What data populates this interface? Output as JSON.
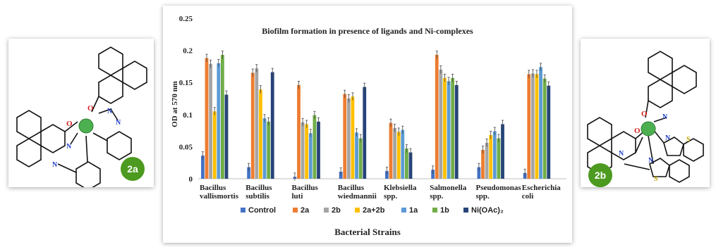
{
  "chart_data": {
    "type": "bar",
    "title": "Biofilm formation in presence of ligands and Ni-complexes",
    "xlabel": "Bacterial Strains",
    "ylabel": "OD at 570 nm",
    "ylim": [
      0,
      0.25
    ],
    "yticks": [
      "0",
      "0.05",
      "0.1",
      "0.15",
      "0.2",
      "0.25"
    ],
    "grid": false,
    "legend_position": "bottom",
    "categories": [
      [
        "Bacillus",
        "vallismortis"
      ],
      [
        "Bacillus",
        "subtilis"
      ],
      [
        "Bacillus",
        "luti"
      ],
      [
        "Bacillus",
        "wiedmannii"
      ],
      [
        "Klebsiella",
        "spp."
      ],
      [
        "Salmonella",
        "spp."
      ],
      [
        "Pseudomonas",
        "spp."
      ],
      [
        "Escherichia",
        "coli"
      ]
    ],
    "series": [
      {
        "name": "Control",
        "color": "#4472c4",
        "values": [
          0.036,
          0.018,
          0.003,
          0.011,
          0.012,
          0.014,
          0.018,
          0.009
        ]
      },
      {
        "name": "2a",
        "color": "#ed7d31",
        "values": [
          0.188,
          0.165,
          0.146,
          0.132,
          0.087,
          0.193,
          0.045,
          0.163
        ]
      },
      {
        "name": "2b",
        "color": "#a5a5a5",
        "values": [
          0.179,
          0.172,
          0.088,
          0.125,
          0.079,
          0.17,
          0.056,
          0.164
        ]
      },
      {
        "name": "2a+2b",
        "color": "#ffc000",
        "values": [
          0.105,
          0.139,
          0.085,
          0.128,
          0.073,
          0.157,
          0.068,
          0.163
        ]
      },
      {
        "name": "1a",
        "color": "#5b9bd5",
        "values": [
          0.18,
          0.094,
          0.071,
          0.072,
          0.076,
          0.152,
          0.074,
          0.174
        ]
      },
      {
        "name": "1b",
        "color": "#70ad47",
        "values": [
          0.193,
          0.089,
          0.099,
          0.063,
          0.047,
          0.157,
          0.063,
          0.156
        ]
      },
      {
        "name": "Ni(OAc)₂",
        "color": "#264478",
        "values": [
          0.131,
          0.166,
          0.089,
          0.143,
          0.041,
          0.146,
          0.085,
          0.145
        ]
      }
    ],
    "error_bars": 0.006
  },
  "badges": {
    "left": "2a",
    "right": "2b"
  }
}
